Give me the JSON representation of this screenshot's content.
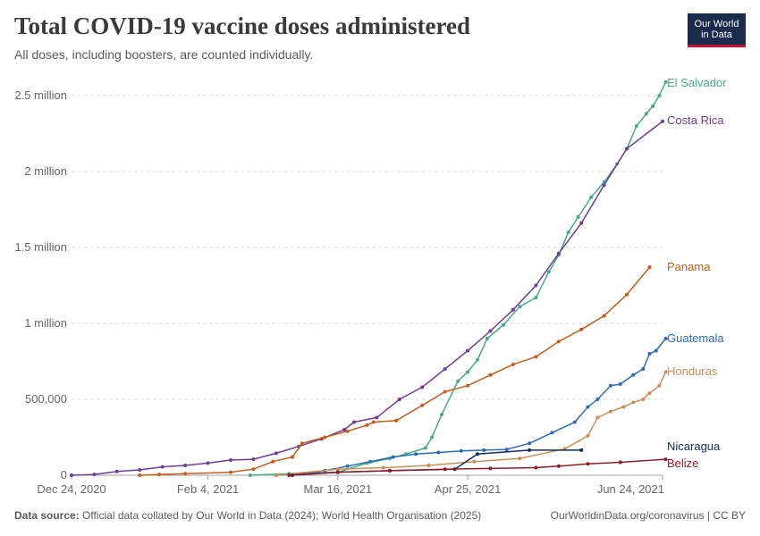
{
  "header": {
    "title": "Total COVID-19 vaccine doses administered",
    "subtitle": "All doses, including boosters, are counted individually."
  },
  "logo": {
    "line1": "Our World",
    "line2": "in Data",
    "bg_color": "#1a2b4d",
    "accent_color": "#c8102e"
  },
  "footer": {
    "source_label": "Data source:",
    "source_text": "Official data collated by Our World in Data (2024); World Health Organisation (2025)",
    "link_text": "OurWorldinData.org/coronavirus",
    "license": "| CC BY"
  },
  "chart_data": {
    "type": "line",
    "x_type": "date",
    "xlim": [
      "2020-12-24",
      "2021-06-24"
    ],
    "x_ticks": [
      "2020-12-24",
      "2021-02-04",
      "2021-03-16",
      "2021-04-25",
      "2021-06-24"
    ],
    "x_tick_labels": [
      "Dec 24, 2020",
      "Feb 4, 2021",
      "Mar 16, 2021",
      "Apr 25, 2021",
      "Jun 24, 2021"
    ],
    "ylim": [
      0,
      2500000
    ],
    "y_ticks": [
      0,
      500000,
      1000000,
      1500000,
      2000000,
      2500000
    ],
    "y_tick_labels": [
      "0",
      "500,000",
      "1 million",
      "1.5 million",
      "2 million",
      "2.5 million"
    ],
    "grid": "horizontal dashed",
    "legend": "inline labels at line ends",
    "series": [
      {
        "name": "El Salvador",
        "color": "#4aa88a",
        "points": [
          [
            "2021-02-17",
            0
          ],
          [
            "2021-03-01",
            10000
          ],
          [
            "2021-03-16",
            20000
          ],
          [
            "2021-03-25",
            80000
          ],
          [
            "2021-04-01",
            110000
          ],
          [
            "2021-04-06",
            140000
          ],
          [
            "2021-04-12",
            180000
          ],
          [
            "2021-04-14",
            250000
          ],
          [
            "2021-04-17",
            400000
          ],
          [
            "2021-04-22",
            620000
          ],
          [
            "2021-04-25",
            680000
          ],
          [
            "2021-04-28",
            760000
          ],
          [
            "2021-05-01",
            900000
          ],
          [
            "2021-05-06",
            990000
          ],
          [
            "2021-05-11",
            1110000
          ],
          [
            "2021-05-16",
            1170000
          ],
          [
            "2021-05-20",
            1340000
          ],
          [
            "2021-05-23",
            1450000
          ],
          [
            "2021-05-26",
            1600000
          ],
          [
            "2021-05-29",
            1700000
          ],
          [
            "2021-06-02",
            1830000
          ],
          [
            "2021-06-06",
            1930000
          ],
          [
            "2021-06-10",
            2050000
          ],
          [
            "2021-06-13",
            2150000
          ],
          [
            "2021-06-16",
            2300000
          ],
          [
            "2021-06-19",
            2380000
          ],
          [
            "2021-06-21",
            2430000
          ],
          [
            "2021-06-23",
            2500000
          ],
          [
            "2021-06-25",
            2590000
          ]
        ]
      },
      {
        "name": "Costa Rica",
        "color": "#6d3e91",
        "points": [
          [
            "2020-12-24",
            0
          ],
          [
            "2020-12-31",
            5000
          ],
          [
            "2021-01-07",
            25000
          ],
          [
            "2021-01-14",
            35000
          ],
          [
            "2021-01-21",
            55000
          ],
          [
            "2021-01-28",
            65000
          ],
          [
            "2021-02-04",
            80000
          ],
          [
            "2021-02-11",
            100000
          ],
          [
            "2021-02-18",
            105000
          ],
          [
            "2021-02-25",
            145000
          ],
          [
            "2021-03-04",
            190000
          ],
          [
            "2021-03-11",
            240000
          ],
          [
            "2021-03-18",
            300000
          ],
          [
            "2021-03-21",
            350000
          ],
          [
            "2021-03-28",
            380000
          ],
          [
            "2021-04-04",
            500000
          ],
          [
            "2021-04-11",
            580000
          ],
          [
            "2021-04-18",
            700000
          ],
          [
            "2021-04-25",
            820000
          ],
          [
            "2021-05-02",
            950000
          ],
          [
            "2021-05-09",
            1090000
          ],
          [
            "2021-05-16",
            1250000
          ],
          [
            "2021-05-23",
            1460000
          ],
          [
            "2021-05-30",
            1660000
          ],
          [
            "2021-06-06",
            1910000
          ],
          [
            "2021-06-13",
            2150000
          ],
          [
            "2021-06-24",
            2330000
          ]
        ]
      },
      {
        "name": "Panama",
        "color": "#c15f20",
        "points": [
          [
            "2021-01-14",
            0
          ],
          [
            "2021-01-20",
            5000
          ],
          [
            "2021-01-28",
            10000
          ],
          [
            "2021-02-11",
            20000
          ],
          [
            "2021-02-18",
            40000
          ],
          [
            "2021-02-24",
            90000
          ],
          [
            "2021-03-02",
            120000
          ],
          [
            "2021-03-05",
            210000
          ],
          [
            "2021-03-12",
            250000
          ],
          [
            "2021-03-19",
            290000
          ],
          [
            "2021-03-25",
            330000
          ],
          [
            "2021-03-27",
            350000
          ],
          [
            "2021-04-03",
            360000
          ],
          [
            "2021-04-11",
            460000
          ],
          [
            "2021-04-18",
            550000
          ],
          [
            "2021-04-25",
            590000
          ],
          [
            "2021-05-02",
            660000
          ],
          [
            "2021-05-09",
            730000
          ],
          [
            "2021-05-16",
            780000
          ],
          [
            "2021-05-23",
            880000
          ],
          [
            "2021-05-30",
            960000
          ],
          [
            "2021-06-06",
            1050000
          ],
          [
            "2021-06-13",
            1190000
          ],
          [
            "2021-06-20",
            1370000
          ]
        ]
      },
      {
        "name": "Guatemala",
        "color": "#2d6bb4",
        "points": [
          [
            "2021-02-25",
            0
          ],
          [
            "2021-03-05",
            10000
          ],
          [
            "2021-03-12",
            30000
          ],
          [
            "2021-03-19",
            60000
          ],
          [
            "2021-03-26",
            90000
          ],
          [
            "2021-04-02",
            120000
          ],
          [
            "2021-04-09",
            140000
          ],
          [
            "2021-04-16",
            150000
          ],
          [
            "2021-04-23",
            160000
          ],
          [
            "2021-04-30",
            165000
          ],
          [
            "2021-05-07",
            170000
          ],
          [
            "2021-05-14",
            210000
          ],
          [
            "2021-05-21",
            280000
          ],
          [
            "2021-05-28",
            350000
          ],
          [
            "2021-06-01",
            450000
          ],
          [
            "2021-06-04",
            500000
          ],
          [
            "2021-06-08",
            590000
          ],
          [
            "2021-06-11",
            600000
          ],
          [
            "2021-06-15",
            660000
          ],
          [
            "2021-06-18",
            700000
          ],
          [
            "2021-06-20",
            800000
          ],
          [
            "2021-06-22",
            820000
          ],
          [
            "2021-06-25",
            900000
          ]
        ]
      },
      {
        "name": "Honduras",
        "color": "#c4915a",
        "points": [
          [
            "2021-02-25",
            0
          ],
          [
            "2021-03-16",
            40000
          ],
          [
            "2021-03-30",
            50000
          ],
          [
            "2021-04-13",
            65000
          ],
          [
            "2021-04-27",
            90000
          ],
          [
            "2021-05-11",
            110000
          ],
          [
            "2021-05-25",
            175000
          ],
          [
            "2021-06-01",
            260000
          ],
          [
            "2021-06-04",
            380000
          ],
          [
            "2021-06-08",
            420000
          ],
          [
            "2021-06-12",
            450000
          ],
          [
            "2021-06-15",
            480000
          ],
          [
            "2021-06-18",
            500000
          ],
          [
            "2021-06-20",
            540000
          ],
          [
            "2021-06-23",
            590000
          ],
          [
            "2021-06-25",
            680000
          ]
        ]
      },
      {
        "name": "Nicaragua",
        "color": "#132d55",
        "points": [
          [
            "2021-03-02",
            0
          ],
          [
            "2021-03-16",
            20000
          ],
          [
            "2021-04-01",
            30000
          ],
          [
            "2021-04-21",
            40000
          ],
          [
            "2021-04-28",
            140000
          ],
          [
            "2021-05-14",
            165000
          ],
          [
            "2021-05-30",
            165000
          ]
        ]
      },
      {
        "name": "Belize",
        "color": "#8b1e2e",
        "points": [
          [
            "2021-03-01",
            0
          ],
          [
            "2021-03-16",
            20000
          ],
          [
            "2021-04-01",
            30000
          ],
          [
            "2021-04-18",
            40000
          ],
          [
            "2021-05-02",
            45000
          ],
          [
            "2021-05-16",
            50000
          ],
          [
            "2021-05-23",
            60000
          ],
          [
            "2021-06-01",
            75000
          ],
          [
            "2021-06-11",
            85000
          ],
          [
            "2021-06-25",
            105000
          ]
        ]
      }
    ]
  }
}
